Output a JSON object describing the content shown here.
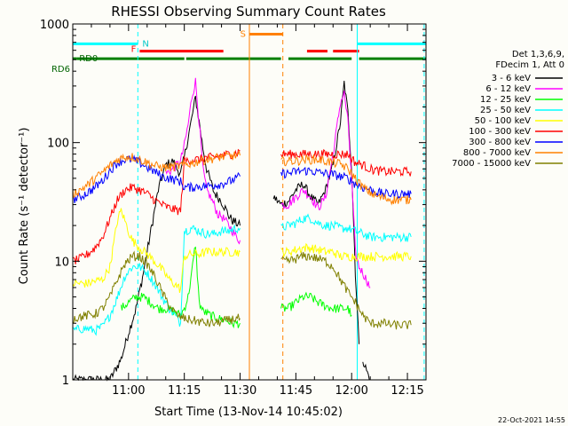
{
  "chart_data": {
    "type": "line",
    "title": "RHESSI Observing Summary Count Rates",
    "xlabel": "Start Time (13-Nov-14 10:45:02)",
    "ylabel": "Count Rate (s⁻¹ detector⁻¹)",
    "x_unit": "minutes after 10:45:02",
    "xlim": [
      0,
      95
    ],
    "ylim": [
      1,
      1000
    ],
    "y_scale": "log",
    "x_ticks": [
      {
        "label": "11:00",
        "value": 15
      },
      {
        "label": "11:15",
        "value": 30
      },
      {
        "label": "11:30",
        "value": 45
      },
      {
        "label": "11:45",
        "value": 60
      },
      {
        "label": "12:00",
        "value": 75
      },
      {
        "label": "12:15",
        "value": 90
      }
    ],
    "y_ticks": [
      {
        "label": "1",
        "value": 1
      },
      {
        "label": "10",
        "value": 10
      },
      {
        "label": "100",
        "value": 100
      },
      {
        "label": "1000",
        "value": 1000
      }
    ],
    "legend": {
      "placement": "top-right",
      "header": [
        "Det 1,3,6,9,",
        "FDecim 1, Att 0"
      ]
    },
    "series": [
      {
        "name": "3 - 6 keV",
        "color": "#000000",
        "segments": [
          {
            "x": [
              0,
              5,
              10,
              13,
              15,
              17,
              19,
              21,
              23,
              25,
              27,
              28,
              29,
              30,
              31,
              32,
              33,
              34,
              35,
              36,
              37,
              38,
              39,
              40,
              41,
              42,
              43,
              44,
              45
            ],
            "y": [
              1,
              1,
              1,
              1.5,
              2.5,
              4,
              8,
              18,
              40,
              65,
              70,
              60,
              55,
              75,
              110,
              160,
              240,
              150,
              90,
              60,
              48,
              38,
              35,
              32,
              28,
              24,
              22,
              21,
              20
            ]
          },
          {
            "x": [
              54,
              56,
              58,
              60,
              62,
              64,
              66,
              68,
              70,
              72,
              73,
              74,
              75,
              76,
              77
            ],
            "y": [
              35,
              30,
              32,
              40,
              45,
              35,
              30,
              40,
              65,
              150,
              320,
              180,
              60,
              8,
              2
            ]
          },
          {
            "x": [
              78,
              79,
              80
            ],
            "y": [
              1.5,
              1.2,
              1
            ]
          }
        ]
      },
      {
        "name": "6 - 12 keV",
        "color": "#ff00ff",
        "segments": [
          {
            "x": [
              25,
              27,
              29,
              30,
              31,
              32,
              33,
              34,
              35,
              36,
              37,
              38,
              39,
              40,
              41,
              42,
              43,
              44,
              45
            ],
            "y": [
              55,
              60,
              70,
              95,
              140,
              240,
              330,
              150,
              60,
              40,
              35,
              30,
              25,
              24,
              22,
              20,
              18,
              16,
              15
            ]
          },
          {
            "x": [
              56,
              58,
              60,
              62,
              64,
              66,
              68,
              70,
              72,
              73,
              74,
              75,
              76,
              77,
              78,
              79,
              80
            ],
            "y": [
              30,
              30,
              35,
              40,
              35,
              28,
              35,
              80,
              220,
              260,
              150,
              50,
              12,
              9,
              8,
              7,
              6
            ]
          }
        ]
      },
      {
        "name": "12 - 25 keV",
        "color": "#00ff00",
        "segments": [
          {
            "x": [
              13,
              15,
              17,
              19,
              21,
              23,
              25,
              27,
              29,
              30,
              31,
              32,
              33,
              34,
              35,
              37,
              39,
              41,
              43,
              45
            ],
            "y": [
              4,
              4.5,
              5,
              5,
              4.5,
              4,
              4,
              3.8,
              3.5,
              4,
              5,
              8,
              14,
              4.5,
              3.8,
              3.5,
              3.3,
              3.2,
              3,
              3
            ]
          },
          {
            "x": [
              56,
              58,
              60,
              62,
              64,
              66,
              68,
              70,
              72,
              74,
              75
            ],
            "y": [
              4,
              4,
              4.5,
              5,
              5,
              4.5,
              4.2,
              4,
              4,
              4,
              3.5
            ]
          }
        ]
      },
      {
        "name": "25 - 50 keV",
        "color": "#00ffff",
        "segments": [
          {
            "x": [
              0,
              2,
              4,
              6,
              8,
              10,
              12,
              14,
              16,
              18,
              20,
              22,
              24,
              26,
              28,
              29,
              30,
              32,
              34,
              36,
              38,
              40,
              42,
              44,
              45
            ],
            "y": [
              2.6,
              2.7,
              2.7,
              2.6,
              2.8,
              3.5,
              5,
              7.5,
              9,
              9,
              8,
              6.5,
              5,
              4,
              3.3,
              3,
              18,
              19,
              18,
              17,
              17,
              18,
              18,
              19,
              19
            ]
          },
          {
            "x": [
              56,
              58,
              60,
              62,
              64,
              66,
              68,
              70,
              72,
              74,
              76,
              78,
              80,
              82,
              84,
              86,
              88,
              90,
              91
            ],
            "y": [
              19,
              20,
              21,
              23,
              23,
              21,
              20,
              20,
              19,
              19,
              18,
              17,
              16,
              16,
              16,
              16,
              16,
              16,
              16
            ]
          }
        ]
      },
      {
        "name": "50 - 100 keV",
        "color": "#ffff00",
        "segments": [
          {
            "x": [
              0,
              2,
              4,
              6,
              8,
              10,
              11,
              12,
              13,
              14,
              15,
              16,
              17,
              18,
              20,
              22,
              24,
              26,
              28,
              29,
              30,
              32,
              34,
              36,
              38,
              40,
              42,
              44,
              45
            ],
            "y": [
              6.5,
              6.5,
              6.5,
              6.8,
              7,
              9,
              14,
              22,
              27,
              22,
              18,
              15,
              14,
              13,
              11.5,
              10,
              8.5,
              7,
              6.2,
              5.8,
              11,
              11.5,
              11.5,
              12,
              12,
              12,
              12,
              12,
              12
            ]
          },
          {
            "x": [
              56,
              58,
              60,
              62,
              64,
              66,
              68,
              70,
              72,
              74,
              76,
              78,
              80,
              82,
              84,
              86,
              88,
              90,
              91
            ],
            "y": [
              12,
              12,
              12.5,
              13,
              13,
              12.5,
              12,
              12,
              11,
              11,
              11,
              11,
              11,
              11,
              11,
              11,
              11,
              11,
              11
            ]
          }
        ]
      },
      {
        "name": "100 - 300 keV",
        "color": "#ff0000",
        "segments": [
          {
            "x": [
              0,
              2,
              4,
              6,
              8,
              10,
              12,
              14,
              16,
              18,
              20,
              22,
              24,
              26,
              28,
              29,
              30,
              32,
              34,
              36,
              38,
              40,
              42,
              44,
              45
            ],
            "y": [
              10,
              10.5,
              11.5,
              13,
              16,
              23,
              33,
              40,
              42,
              40,
              37,
              33,
              30,
              28,
              27,
              26.5,
              70,
              72,
              72,
              75,
              75,
              78,
              80,
              82,
              85
            ]
          },
          {
            "x": [
              56,
              58,
              60,
              62,
              64,
              66,
              68,
              70,
              72,
              74,
              76,
              78,
              80,
              82,
              84,
              86,
              88,
              90,
              91
            ],
            "y": [
              80,
              80,
              80,
              80,
              80,
              80,
              80,
              80,
              80,
              80,
              68,
              65,
              60,
              58,
              57,
              57,
              57,
              57,
              57
            ]
          }
        ]
      },
      {
        "name": "300 - 800 keV",
        "color": "#0000ff",
        "segments": [
          {
            "x": [
              0,
              2,
              4,
              6,
              8,
              10,
              12,
              14,
              16,
              18,
              20,
              22,
              24,
              26,
              28,
              29,
              30,
              32,
              34,
              36,
              38,
              40,
              42,
              44,
              45
            ],
            "y": [
              33,
              35,
              38,
              42,
              48,
              58,
              68,
              72,
              72,
              68,
              62,
              57,
              52,
              50,
              48,
              47,
              42,
              42,
              43,
              43,
              44,
              45,
              47,
              50,
              52
            ]
          },
          {
            "x": [
              56,
              58,
              60,
              62,
              64,
              66,
              68,
              70,
              72,
              74,
              76,
              78,
              80,
              82,
              84,
              86,
              88,
              90,
              91
            ],
            "y": [
              55,
              55,
              57,
              58,
              58,
              56,
              55,
              54,
              52,
              50,
              45,
              42,
              40,
              38,
              37,
              37,
              37,
              37,
              37
            ]
          }
        ]
      },
      {
        "name": "800 - 7000 keV",
        "color": "#ff8000",
        "segments": [
          {
            "x": [
              0,
              2,
              4,
              6,
              8,
              10,
              12,
              14,
              16,
              18,
              20,
              22,
              24,
              26,
              28,
              30,
              32,
              34,
              36,
              38,
              40,
              42,
              44,
              45
            ],
            "y": [
              37,
              40,
              44,
              50,
              56,
              64,
              72,
              76,
              76,
              72,
              68,
              64,
              62,
              62,
              63,
              65,
              67,
              70,
              72,
              74,
              76,
              77,
              78,
              78
            ]
          },
          {
            "x": [
              56,
              58,
              60,
              62,
              64,
              66,
              68,
              70,
              72,
              74,
              76,
              78,
              80,
              82,
              84,
              86,
              88,
              90,
              91
            ],
            "y": [
              70,
              70,
              70,
              72,
              72,
              72,
              70,
              68,
              66,
              60,
              50,
              42,
              38,
              35,
              34,
              33,
              33,
              33,
              33
            ]
          }
        ]
      },
      {
        "name": "7000 - 15000 keV",
        "color": "#808000",
        "segments": [
          {
            "x": [
              0,
              2,
              4,
              6,
              8,
              10,
              12,
              14,
              16,
              18,
              20,
              22,
              24,
              26,
              28,
              30,
              32,
              34,
              36,
              38,
              40,
              42,
              44,
              45
            ],
            "y": [
              3.3,
              3.4,
              3.5,
              3.6,
              4,
              5,
              7,
              9.5,
              11,
              11,
              9.5,
              7.5,
              5.5,
              4.2,
              3.5,
              3.3,
              3.2,
              3.1,
              3.0,
              3.0,
              3.1,
              3.2,
              3.3,
              3.3
            ]
          },
          {
            "x": [
              56,
              58,
              60,
              62,
              64,
              66,
              68,
              70,
              72,
              74,
              76,
              78,
              80,
              82,
              84,
              86,
              88,
              90,
              91
            ],
            "y": [
              10,
              10,
              10.5,
              11,
              11,
              10.5,
              10,
              9,
              7,
              5.5,
              4.5,
              3.5,
              3,
              3,
              3,
              2.9,
              2.9,
              2.9,
              2.9
            ]
          }
        ]
      }
    ],
    "flag_bars": [
      {
        "label": "N",
        "color": "#00ffff",
        "segments": [
          [
            0,
            17.5
          ],
          [
            76.5,
            95
          ]
        ],
        "level": 680
      },
      {
        "label": "F",
        "color": "#ff0000",
        "segments": [
          [
            18,
            40.5
          ],
          [
            63,
            68.5
          ],
          [
            70,
            77
          ]
        ],
        "level": 590
      },
      {
        "label": "S",
        "color": "#ff8000",
        "segments": [
          [
            47.5,
            56.5
          ]
        ],
        "level": 820
      },
      {
        "label": "RD0",
        "color": "#008000",
        "segments": [
          [
            0,
            1
          ]
        ],
        "level": 510
      },
      {
        "label": "RD6",
        "color": "#008000",
        "segments": [
          [
            1,
            30
          ],
          [
            30.5,
            56
          ],
          [
            58,
            75
          ],
          [
            77,
            95
          ]
        ],
        "level": 510
      }
    ],
    "vertical_markers": [
      {
        "x": 17.5,
        "color": "#00ffff",
        "style": "dashed"
      },
      {
        "x": 47.5,
        "color": "#ff8000",
        "style": "solid"
      },
      {
        "x": 56.5,
        "color": "#ff8000",
        "style": "dashed"
      },
      {
        "x": 76.5,
        "color": "#00ffff",
        "style": "solid"
      },
      {
        "x": 94.5,
        "color": "#00ffff",
        "style": "dashed"
      }
    ],
    "footer_date": "22-Oct-2021 14:55"
  }
}
